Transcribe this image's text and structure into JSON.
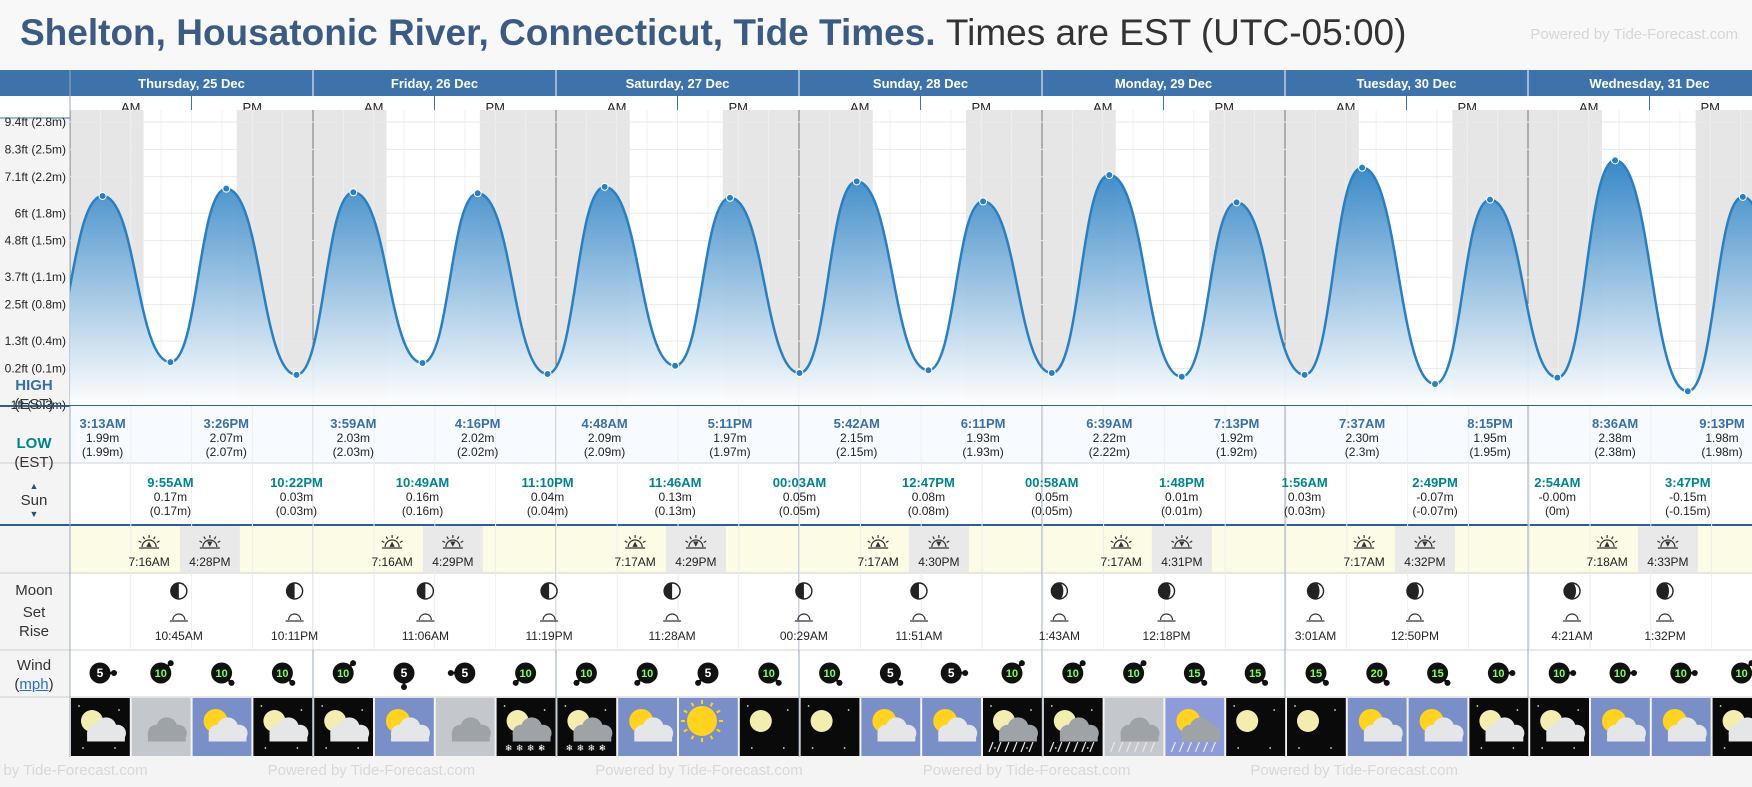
{
  "header": {
    "title": "Shelton, Housatonic River, Connecticut, Tide Times.",
    "timezone_note": "Times are EST (UTC-05:00)",
    "powered_by": "Powered by Tide-Forecast.com"
  },
  "colors": {
    "header_blue": "#3d72aa",
    "high_label": "#3a6ea8",
    "low_label": "#00838f",
    "tide_fill_top": "#2e82c4",
    "tide_line": "#2a7fc0",
    "night_band": "#e6e6e6",
    "sun_row": "#fbfbe6"
  },
  "days": [
    {
      "label": "Thursday, 25 Dec"
    },
    {
      "label": "Friday, 26 Dec"
    },
    {
      "label": "Saturday, 27 Dec"
    },
    {
      "label": "Sunday, 28 Dec"
    },
    {
      "label": "Monday, 29 Dec"
    },
    {
      "label": "Tuesday, 30 Dec"
    },
    {
      "label": "Wednesday, 31 Dec"
    }
  ],
  "ampm": {
    "am": "AM",
    "pm": "PM"
  },
  "row_labels": {
    "high": "HIGH",
    "low": "LOW",
    "tz": "(EST)",
    "sun": "Sun",
    "moon": "Moon",
    "set": "Set",
    "rise": "Rise",
    "wind": "Wind",
    "mph": "mph"
  },
  "chart_data": {
    "type": "area",
    "title": "",
    "ylabel": "",
    "y_ticks": [
      "9.4ft (2.8m)",
      "8.3ft (2.5m)",
      "7.1ft (2.2m)",
      "6ft (1.8m)",
      "4.8ft (1.5m)",
      "3.7ft (1.1m)",
      "2.5ft (0.8m)",
      "1.3ft (0.4m)",
      "0.2ft (0.1m)",
      "-1ft (-0.3m)"
    ],
    "y_tick_values": [
      2.8,
      2.5,
      2.2,
      1.8,
      1.5,
      1.1,
      0.8,
      0.4,
      0.1,
      -0.3
    ],
    "ylim": [
      -0.3,
      2.8
    ],
    "x_range": [
      "25 Dec 00:00",
      "31 Dec 21:00"
    ],
    "grid": true,
    "night_shading": true,
    "tides": [
      {
        "day": 0,
        "time": "3:13AM",
        "height": 1.99,
        "type": "high"
      },
      {
        "day": 0,
        "time": "9:55AM",
        "height": 0.17,
        "type": "low"
      },
      {
        "day": 0,
        "time": "3:26PM",
        "height": 2.07,
        "type": "high"
      },
      {
        "day": 0,
        "time": "10:22PM",
        "height": 0.03,
        "type": "low"
      },
      {
        "day": 1,
        "time": "3:59AM",
        "height": 2.03,
        "type": "high"
      },
      {
        "day": 1,
        "time": "10:49AM",
        "height": 0.16,
        "type": "low"
      },
      {
        "day": 1,
        "time": "4:16PM",
        "height": 2.02,
        "type": "high"
      },
      {
        "day": 1,
        "time": "11:10PM",
        "height": 0.04,
        "type": "low"
      },
      {
        "day": 2,
        "time": "4:48AM",
        "height": 2.09,
        "type": "high"
      },
      {
        "day": 2,
        "time": "11:46AM",
        "height": 0.13,
        "type": "low"
      },
      {
        "day": 2,
        "time": "5:11PM",
        "height": 1.97,
        "type": "high"
      },
      {
        "day": 3,
        "time": "00:03AM",
        "height": 0.05,
        "type": "low"
      },
      {
        "day": 3,
        "time": "5:42AM",
        "height": 2.15,
        "type": "high"
      },
      {
        "day": 3,
        "time": "12:47PM",
        "height": 0.08,
        "type": "low"
      },
      {
        "day": 3,
        "time": "6:11PM",
        "height": 1.93,
        "type": "high"
      },
      {
        "day": 4,
        "time": "00:58AM",
        "height": 0.05,
        "type": "low"
      },
      {
        "day": 4,
        "time": "6:39AM",
        "height": 2.22,
        "type": "high"
      },
      {
        "day": 4,
        "time": "1:48PM",
        "height": 0.01,
        "type": "low"
      },
      {
        "day": 4,
        "time": "7:13PM",
        "height": 1.92,
        "type": "high"
      },
      {
        "day": 5,
        "time": "1:56AM",
        "height": 0.03,
        "type": "low"
      },
      {
        "day": 5,
        "time": "7:37AM",
        "height": 2.3,
        "type": "high"
      },
      {
        "day": 5,
        "time": "2:49PM",
        "height": -0.07,
        "type": "low"
      },
      {
        "day": 5,
        "time": "8:15PM",
        "height": 1.95,
        "type": "high"
      },
      {
        "day": 6,
        "time": "2:54AM",
        "height": -0.0,
        "type": "low"
      },
      {
        "day": 6,
        "time": "8:36AM",
        "height": 2.38,
        "type": "high"
      },
      {
        "day": 6,
        "time": "3:47PM",
        "height": -0.15,
        "type": "low"
      },
      {
        "day": 6,
        "time": "9:13PM",
        "height": 1.98,
        "type": "high"
      }
    ]
  },
  "tide_rows": {
    "high": [
      {
        "day": 0,
        "time": "3:13AM",
        "m": "1.99m",
        "paren": "(1.99m)"
      },
      {
        "day": 0,
        "time": "3:26PM",
        "m": "2.07m",
        "paren": "(2.07m)"
      },
      {
        "day": 1,
        "time": "3:59AM",
        "m": "2.03m",
        "paren": "(2.03m)"
      },
      {
        "day": 1,
        "time": "4:16PM",
        "m": "2.02m",
        "paren": "(2.02m)"
      },
      {
        "day": 2,
        "time": "4:48AM",
        "m": "2.09m",
        "paren": "(2.09m)"
      },
      {
        "day": 2,
        "time": "5:11PM",
        "m": "1.97m",
        "paren": "(1.97m)"
      },
      {
        "day": 3,
        "time": "5:42AM",
        "m": "2.15m",
        "paren": "(2.15m)"
      },
      {
        "day": 3,
        "time": "6:11PM",
        "m": "1.93m",
        "paren": "(1.93m)"
      },
      {
        "day": 4,
        "time": "6:39AM",
        "m": "2.22m",
        "paren": "(2.22m)"
      },
      {
        "day": 4,
        "time": "7:13PM",
        "m": "1.92m",
        "paren": "(1.92m)"
      },
      {
        "day": 5,
        "time": "7:37AM",
        "m": "2.30m",
        "paren": "(2.3m)"
      },
      {
        "day": 5,
        "time": "8:15PM",
        "m": "1.95m",
        "paren": "(1.95m)"
      },
      {
        "day": 6,
        "time": "8:36AM",
        "m": "2.38m",
        "paren": "(2.38m)"
      },
      {
        "day": 6,
        "time": "9:13PM",
        "m": "1.98m",
        "paren": "(1.98m)"
      }
    ],
    "low": [
      {
        "day": 0,
        "time": "9:55AM",
        "m": "0.17m",
        "paren": "(0.17m)"
      },
      {
        "day": 0,
        "time": "10:22PM",
        "m": "0.03m",
        "paren": "(0.03m)"
      },
      {
        "day": 1,
        "time": "10:49AM",
        "m": "0.16m",
        "paren": "(0.16m)"
      },
      {
        "day": 1,
        "time": "11:10PM",
        "m": "0.04m",
        "paren": "(0.04m)"
      },
      {
        "day": 2,
        "time": "11:46AM",
        "m": "0.13m",
        "paren": "(0.13m)"
      },
      {
        "day": 3,
        "time": "00:03AM",
        "m": "0.05m",
        "paren": "(0.05m)"
      },
      {
        "day": 3,
        "time": "12:47PM",
        "m": "0.08m",
        "paren": "(0.08m)"
      },
      {
        "day": 4,
        "time": "00:58AM",
        "m": "0.05m",
        "paren": "(0.05m)"
      },
      {
        "day": 4,
        "time": "1:48PM",
        "m": "0.01m",
        "paren": "(0.01m)"
      },
      {
        "day": 5,
        "time": "1:56AM",
        "m": "0.03m",
        "paren": "(0.03m)"
      },
      {
        "day": 5,
        "time": "2:49PM",
        "m": "-0.07m",
        "paren": "(-0.07m)"
      },
      {
        "day": 6,
        "time": "2:54AM",
        "m": "-0.00m",
        "paren": "(0m)"
      },
      {
        "day": 6,
        "time": "3:47PM",
        "m": "-0.15m",
        "paren": "(-0.15m)"
      }
    ]
  },
  "sun": [
    {
      "day": 0,
      "rise": "7:16AM",
      "set": "4:28PM"
    },
    {
      "day": 1,
      "rise": "7:16AM",
      "set": "4:29PM"
    },
    {
      "day": 2,
      "rise": "7:17AM",
      "set": "4:29PM"
    },
    {
      "day": 3,
      "rise": "7:17AM",
      "set": "4:30PM"
    },
    {
      "day": 4,
      "rise": "7:17AM",
      "set": "4:31PM"
    },
    {
      "day": 5,
      "rise": "7:17AM",
      "set": "4:32PM"
    },
    {
      "day": 6,
      "rise": "7:18AM",
      "set": "4:33PM"
    }
  ],
  "moon": [
    {
      "day": 0,
      "time": "10:45AM",
      "event": "rise",
      "phase": "first-quarter-icon"
    },
    {
      "day": 0,
      "time": "10:11PM",
      "event": "set",
      "phase": "first-quarter-icon"
    },
    {
      "day": 1,
      "time": "11:06AM",
      "event": "rise",
      "phase": "first-quarter-icon"
    },
    {
      "day": 1,
      "time": "11:19PM",
      "event": "set",
      "phase": "first-quarter-icon"
    },
    {
      "day": 2,
      "time": "11:28AM",
      "event": "rise",
      "phase": "first-quarter-icon"
    },
    {
      "day": 3,
      "time": "00:29AM",
      "event": "set",
      "phase": "first-quarter-icon"
    },
    {
      "day": 3,
      "time": "11:51AM",
      "event": "rise",
      "phase": "first-quarter-icon"
    },
    {
      "day": 4,
      "time": "1:43AM",
      "event": "set",
      "phase": "waxing-gibbous-icon"
    },
    {
      "day": 4,
      "time": "12:18PM",
      "event": "rise",
      "phase": "waxing-gibbous-icon"
    },
    {
      "day": 5,
      "time": "3:01AM",
      "event": "set",
      "phase": "waxing-gibbous-icon"
    },
    {
      "day": 5,
      "time": "12:50PM",
      "event": "rise",
      "phase": "waxing-gibbous-icon"
    },
    {
      "day": 6,
      "time": "4:21AM",
      "event": "set",
      "phase": "waxing-gibbous-icon"
    },
    {
      "day": 6,
      "time": "1:32PM",
      "event": "rise",
      "phase": "waxing-gibbous-icon"
    }
  ],
  "wind": [
    {
      "speed": "5",
      "dir": "east"
    },
    {
      "speed": "10",
      "dir": "northeast"
    },
    {
      "speed": "10",
      "dir": "southeast"
    },
    {
      "speed": "10",
      "dir": "southeast"
    },
    {
      "speed": "10",
      "dir": "northeast"
    },
    {
      "speed": "5",
      "dir": "south"
    },
    {
      "speed": "5",
      "dir": "west"
    },
    {
      "speed": "10",
      "dir": "southwest"
    },
    {
      "speed": "10",
      "dir": "southwest"
    },
    {
      "speed": "10",
      "dir": "southwest"
    },
    {
      "speed": "5",
      "dir": "southwest"
    },
    {
      "speed": "10",
      "dir": "southeast"
    },
    {
      "speed": "10",
      "dir": "southeast"
    },
    {
      "speed": "5",
      "dir": "southeast"
    },
    {
      "speed": "5",
      "dir": "east"
    },
    {
      "speed": "10",
      "dir": "northeast"
    },
    {
      "speed": "10",
      "dir": "northeast"
    },
    {
      "speed": "10",
      "dir": "northeast"
    },
    {
      "speed": "15",
      "dir": "southeast"
    },
    {
      "speed": "15",
      "dir": "southeast"
    },
    {
      "speed": "15",
      "dir": "southeast"
    },
    {
      "speed": "20",
      "dir": "southeast"
    },
    {
      "speed": "15",
      "dir": "southeast"
    },
    {
      "speed": "10",
      "dir": "east"
    },
    {
      "speed": "10",
      "dir": "east"
    },
    {
      "speed": "10",
      "dir": "east"
    },
    {
      "speed": "10",
      "dir": "east"
    },
    {
      "speed": "10",
      "dir": "northeast"
    }
  ],
  "weather": [
    "night-partly-cloudy-icon",
    "cloudy-icon",
    "partly-sunny-icon",
    "night-partly-cloudy-icon",
    "night-partly-cloudy-icon",
    "partly-sunny-icon",
    "cloudy-icon",
    "night-snow-icon",
    "night-snow-icon",
    "partly-sunny-icon",
    "sunny-icon",
    "night-clear-icon",
    "night-clear-icon",
    "partly-sunny-icon",
    "partly-sunny-icon",
    "night-rain-icon",
    "night-rain-icon",
    "rain-icon",
    "partly-cloudy-rain-icon",
    "night-clear-icon",
    "night-clear-icon",
    "partly-sunny-icon",
    "partly-sunny-icon",
    "night-partly-cloudy-icon",
    "night-partly-cloudy-icon",
    "partly-sunny-icon",
    "partly-sunny-icon",
    "night-partly-cloudy-icon"
  ]
}
